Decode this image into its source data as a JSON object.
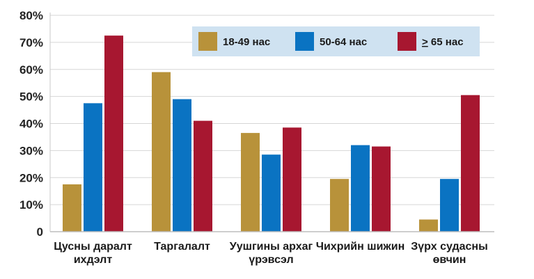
{
  "chart_data": {
    "type": "bar",
    "categories": [
      [
        "Цусны даралт",
        "ихдэлт"
      ],
      [
        "Таргалалт"
      ],
      [
        "Уушгины архаг",
        "үрэвсэл"
      ],
      [
        "Чихрийн шижин"
      ],
      [
        "Зүрх судасны",
        "өвчин"
      ]
    ],
    "series": [
      {
        "name": "18-49 нас",
        "color": "#B8923A",
        "values": [
          17.5,
          59,
          36.5,
          19.5,
          4.5
        ]
      },
      {
        "name": "50-64 нас",
        "color": "#0A73C2",
        "values": [
          47.5,
          49,
          28.5,
          32,
          19.5
        ]
      },
      {
        "name": "> 65 нас",
        "color": "#A71730",
        "values": [
          72.5,
          41,
          38.5,
          31.5,
          50.5
        ]
      }
    ],
    "ylim": [
      0,
      80
    ],
    "yticks": [
      0,
      10,
      20,
      30,
      40,
      50,
      60,
      70,
      80
    ],
    "ytick_suffix": "%",
    "grid": true,
    "legend": "top-right",
    "xlabel": "",
    "ylabel": "",
    "title": ""
  }
}
